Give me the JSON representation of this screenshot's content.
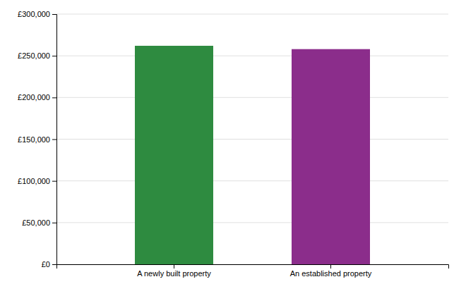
{
  "chart_data": {
    "type": "bar",
    "categories": [
      "A newly built property",
      "An established property"
    ],
    "values": [
      262000,
      258000
    ],
    "colors": [
      "#2e8b40",
      "#8b2d8b"
    ],
    "ylim": [
      0,
      300000
    ],
    "yticks": [
      {
        "value": 0,
        "label": "£0"
      },
      {
        "value": 50000,
        "label": "£50,000"
      },
      {
        "value": 100000,
        "label": "£100,000"
      },
      {
        "value": 150000,
        "label": "£150,000"
      },
      {
        "value": 200000,
        "label": "£200,000"
      },
      {
        "value": 250000,
        "label": "£250,000"
      },
      {
        "value": 300000,
        "label": "£300,000"
      }
    ],
    "grid": true
  }
}
